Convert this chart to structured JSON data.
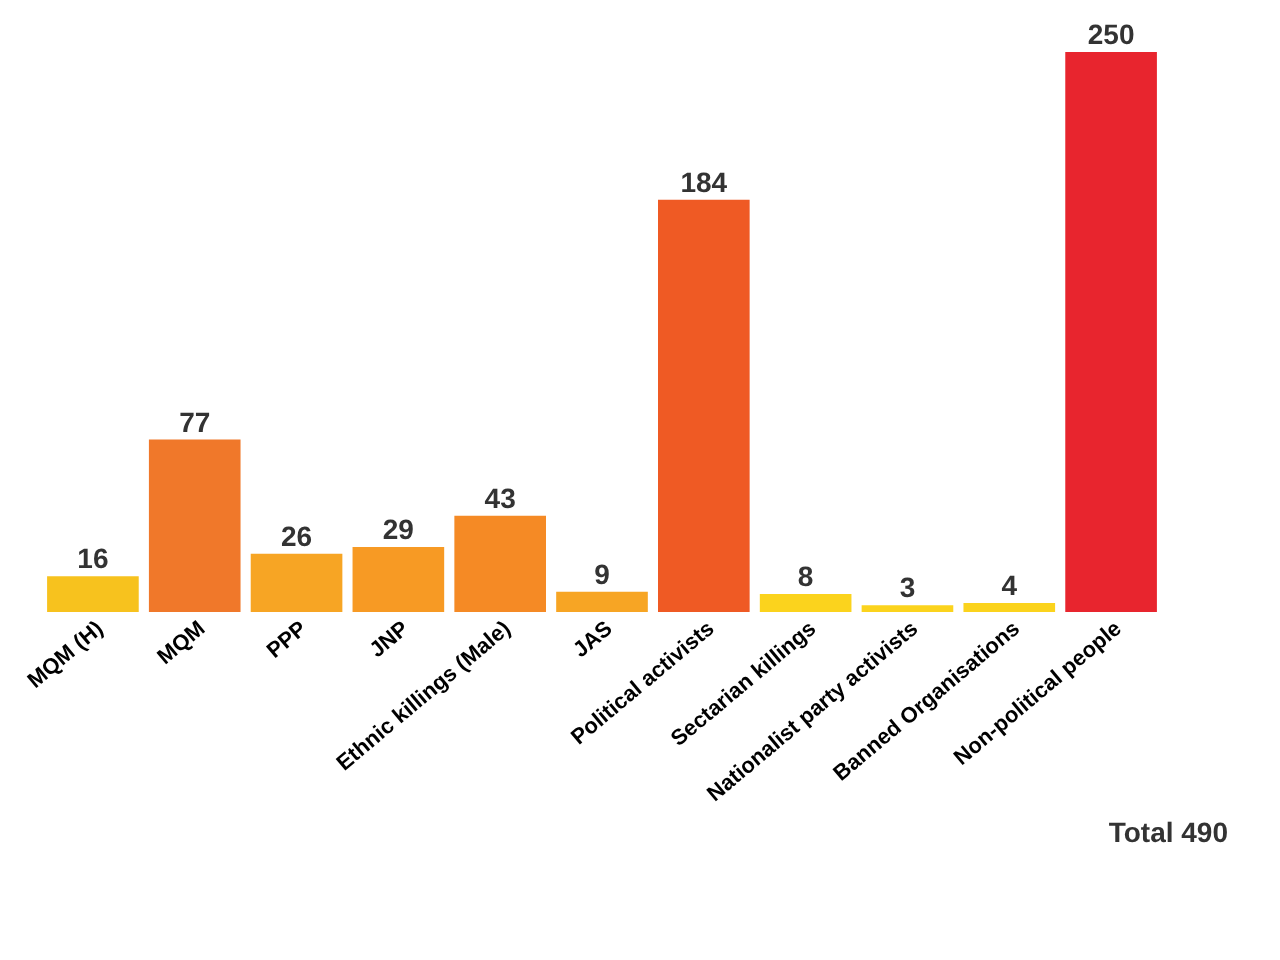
{
  "chart_data": {
    "type": "bar",
    "categories": [
      "MQM (H)",
      "MQM",
      "PPP",
      "JNP",
      "Ethnic killings (Male)",
      "JAS",
      "Political activists",
      "Sectarian killings",
      "Nationalist party activists",
      "Banned Organisations",
      "Non-political people"
    ],
    "values": [
      16,
      77,
      26,
      29,
      43,
      9,
      184,
      8,
      3,
      4,
      250
    ],
    "colors": [
      "#f7c21e",
      "#f0782a",
      "#f7a524",
      "#f79a24",
      "#f58a25",
      "#f7a524",
      "#ef5a24",
      "#fbd31d",
      "#fbd31d",
      "#fbd31d",
      "#e8252e"
    ],
    "data_labels": true,
    "annotations": [
      "Total 490"
    ]
  }
}
